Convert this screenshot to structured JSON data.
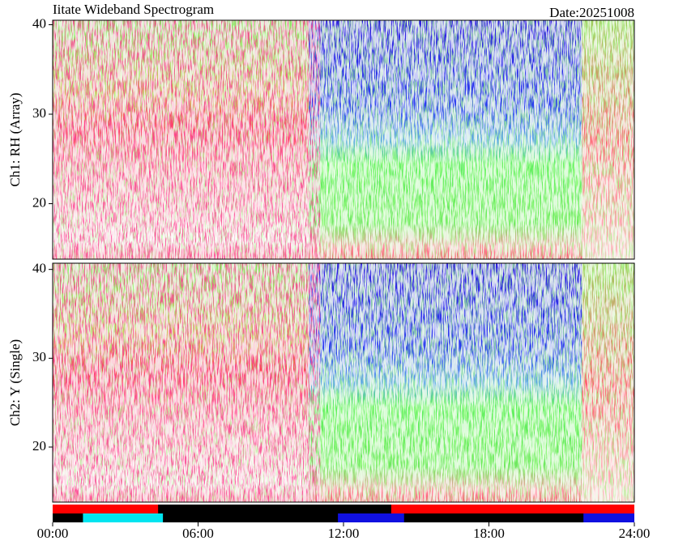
{
  "chart_data": {
    "type": "spectrogram",
    "title": "Iitate Wideband Spectrogram",
    "date_label": "Date:20251008",
    "xlim": [
      0,
      24
    ],
    "xticks": [
      {
        "value": 0,
        "label": "00:00"
      },
      {
        "value": 6,
        "label": "06:00"
      },
      {
        "value": 12,
        "label": "12:00"
      },
      {
        "value": 18,
        "label": "18:00"
      },
      {
        "value": 24,
        "label": "24:00"
      }
    ],
    "panels": [
      {
        "ylabel": "Ch1: RH (Array)",
        "ylim": [
          13.8,
          40.5
        ],
        "yticks": [
          20,
          30,
          40
        ]
      },
      {
        "ylabel": "Ch2: Y (Single)",
        "ylim": [
          13.8,
          40.7
        ],
        "yticks": [
          20,
          30,
          40
        ]
      }
    ],
    "status_bars": [
      {
        "segments": [
          {
            "start": 0,
            "end": 4.35,
            "color": "#ff0000"
          },
          {
            "start": 13.97,
            "end": 24,
            "color": "#ff0000"
          }
        ]
      },
      {
        "segments": [
          {
            "start": 1.25,
            "end": 4.55,
            "color": "#00e5f0"
          },
          {
            "start": 11.77,
            "end": 14.5,
            "color": "#1010e0"
          },
          {
            "start": 21.9,
            "end": 24,
            "color": "#1010e0"
          }
        ]
      }
    ]
  }
}
